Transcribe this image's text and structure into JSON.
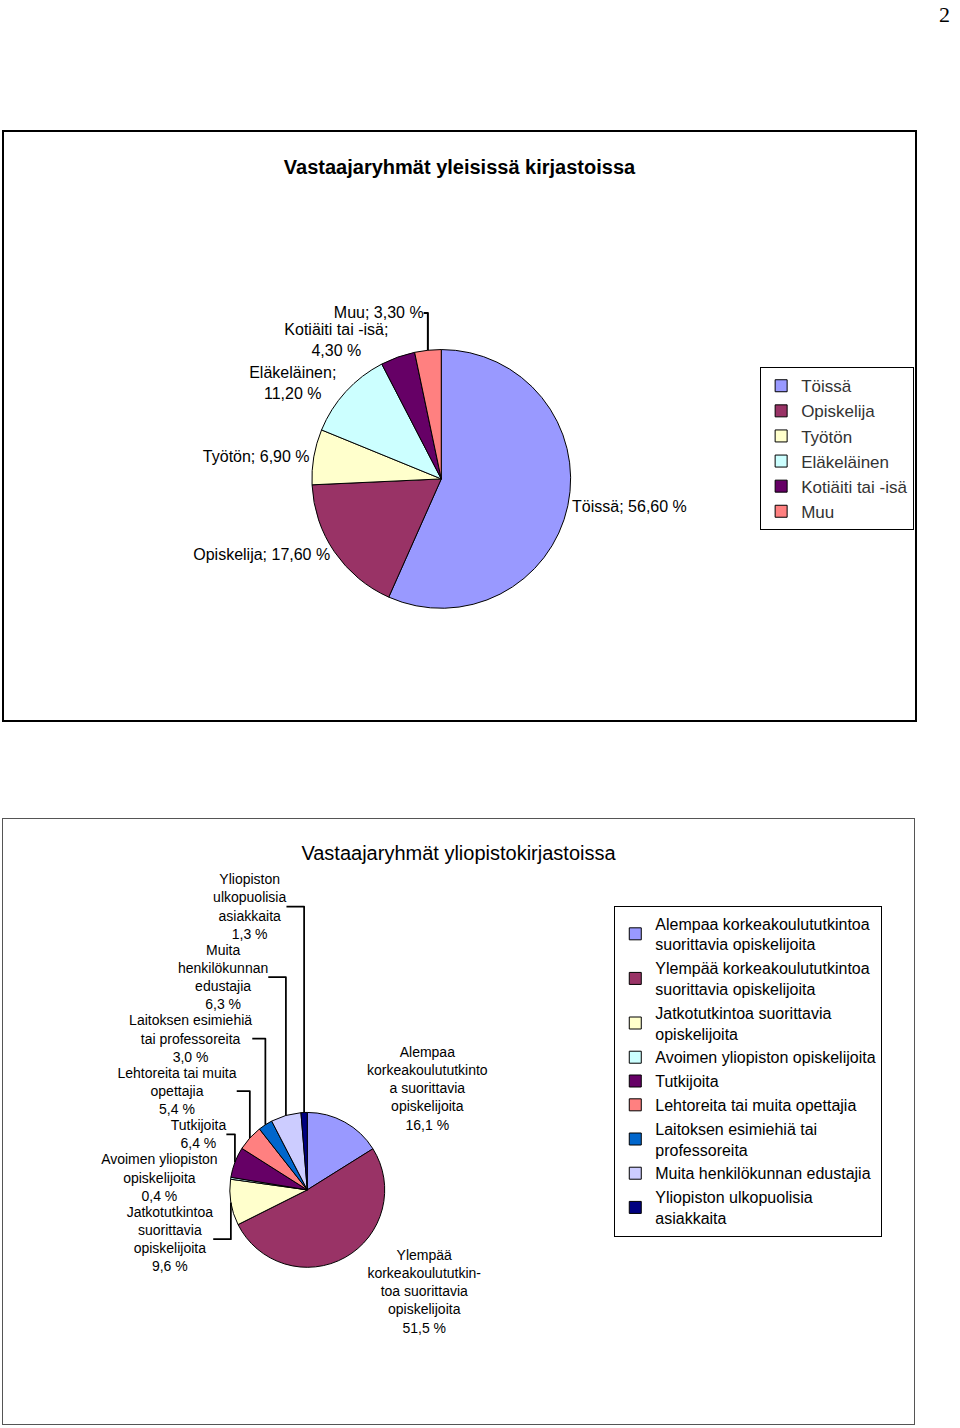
{
  "page_number": 2,
  "chart_data": [
    {
      "type": "pie",
      "title": "Vastaajaryhmät yleisissä kirjastoissa",
      "categories": [
        "Töissä",
        "Opiskelija",
        "Työtön",
        "Eläkeläinen",
        "Kotiäiti tai -isä",
        "Muu"
      ],
      "values": [
        56.6,
        17.6,
        6.9,
        11.2,
        4.3,
        3.3
      ],
      "value_labels": [
        "Töissä; 56,60 %",
        "Opiskelija; 17,60 %",
        "Työtön; 6,90 %",
        "Eläkeläinen;\n11,20 %",
        "Kotiäiti tai -isä;\n4,30 %",
        "Muu; 3,30 %"
      ],
      "colors": [
        "#9999FF",
        "#993366",
        "#FFFFCC",
        "#CCFFFF",
        "#660066",
        "#FF8080"
      ],
      "data_labels": true,
      "legend": "right"
    },
    {
      "type": "pie",
      "title": "Vastaajaryhmät yliopistokirjastoissa",
      "categories": [
        "Alempaa korkeakoulututkintoa\nsuorittavia opiskelijoita",
        "Ylempää korkeakoulututkintoa\nsuorittavia opiskelijoita",
        "Jatkotutkintoa suorittavia\nopiskelijoita",
        "Avoimen yliopiston opiskelijoita",
        "Tutkijoita",
        "Lehtoreita tai muita opettajia",
        "Laitoksen esimiehiä tai\nprofessoreita",
        "Muita henkilökunnan edustajia",
        "Yliopiston ulkopuolisia\nasiakkaita"
      ],
      "values": [
        16.1,
        51.5,
        9.6,
        0.4,
        6.4,
        5.4,
        3.0,
        6.3,
        1.3
      ],
      "value_labels": [
        "Alempaa\nkorkeakoulututkinto\na suorittavia\nopiskelijoita\n16,1 %",
        "Ylempää\nkorkeakoulututkin-\ntoa suorittavia\nopiskelijoita\n51,5 %",
        "Jatkotutkintoa\nsuorittavia\nopiskelijoita\n9,6 %",
        "Avoimen yliopiston\nopiskelijoita\n0,4 %",
        "Tutkijoita\n6,4 %",
        "Lehtoreita tai muita\nopettajia\n5,4 %",
        "Laitoksen esimiehiä\ntai professoreita\n3,0 %",
        "Muita\nhenkilökunnan\nedustajia\n6,3 %",
        "Yliopiston\nulkopuolisia\nasiakkaita\n1,3 %"
      ],
      "colors": [
        "#9999FF",
        "#993366",
        "#FFFFCC",
        "#CCFFFF",
        "#660066",
        "#FF8080",
        "#0066CC",
        "#CCCCFF",
        "#000080"
      ],
      "data_labels": true,
      "legend": "right"
    }
  ]
}
